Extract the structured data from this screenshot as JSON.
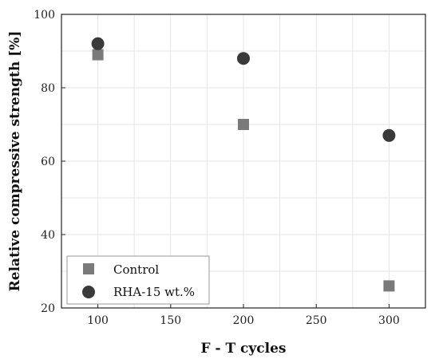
{
  "chart_data": {
    "type": "scatter",
    "title": "",
    "xlabel": "F - T cycles",
    "ylabel": "Relative compressive strength [%]",
    "xlim": [
      75,
      325
    ],
    "ylim": [
      20,
      100
    ],
    "xticks": [
      100,
      150,
      200,
      250,
      300
    ],
    "yticks": [
      20,
      40,
      60,
      80,
      100
    ],
    "grid": true,
    "legend": "bottom-left",
    "series": [
      {
        "name": "Control",
        "marker": "square",
        "color": "#7a7a7a",
        "x": [
          100,
          200,
          300
        ],
        "y": [
          89,
          70,
          26
        ]
      },
      {
        "name": "RHA-15 wt.%",
        "marker": "circle",
        "color": "#3a3a3a",
        "x": [
          100,
          200,
          300
        ],
        "y": [
          92,
          88,
          67
        ]
      }
    ]
  }
}
